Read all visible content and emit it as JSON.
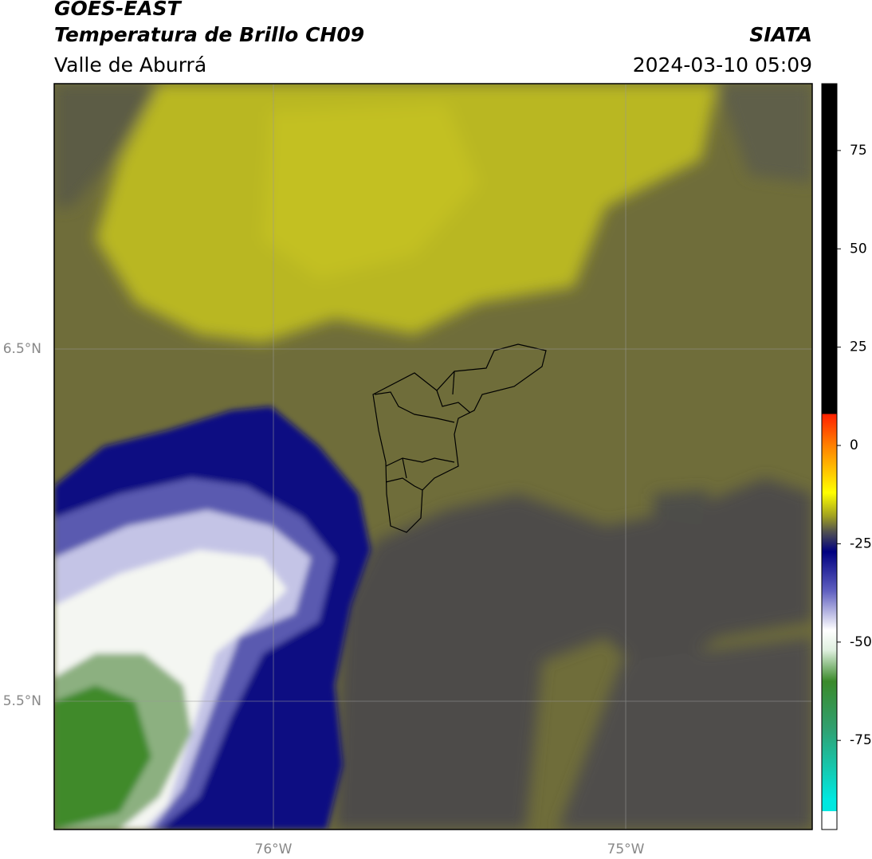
{
  "header": {
    "title": "GOES-EAST",
    "subtitle": "Temperatura de Brillo CH09",
    "region": "Valle de Aburrá",
    "source": "SIATA",
    "datetime": "2024-03-10 05:09"
  },
  "map": {
    "lat_labels": [
      "6.5°N",
      "5.5°N"
    ],
    "lon_labels": [
      "76°W",
      "75°W"
    ]
  },
  "colorbar": {
    "lim": [
      -93,
      92
    ],
    "ticks": [
      75,
      50,
      25,
      0,
      -25,
      -50,
      -75
    ],
    "colorscale": [
      {
        "value": 92,
        "color": "#000000"
      },
      {
        "value": 8,
        "color": "#000000"
      },
      {
        "value": 8,
        "color": "#ff2000"
      },
      {
        "value": 0,
        "color": "#ff8000"
      },
      {
        "value": -12,
        "color": "#ffff00"
      },
      {
        "value": -18,
        "color": "#a0a020"
      },
      {
        "value": -22,
        "color": "#505050"
      },
      {
        "value": -27,
        "color": "#000080"
      },
      {
        "value": -37,
        "color": "#6060c0"
      },
      {
        "value": -47,
        "color": "#ffffff"
      },
      {
        "value": -52,
        "color": "#e0f0e0"
      },
      {
        "value": -60,
        "color": "#3a8a2a"
      },
      {
        "value": -72,
        "color": "#30a070"
      },
      {
        "value": -90,
        "color": "#00e8e0"
      },
      {
        "value": -93,
        "color": "#00e8e0"
      }
    ]
  }
}
